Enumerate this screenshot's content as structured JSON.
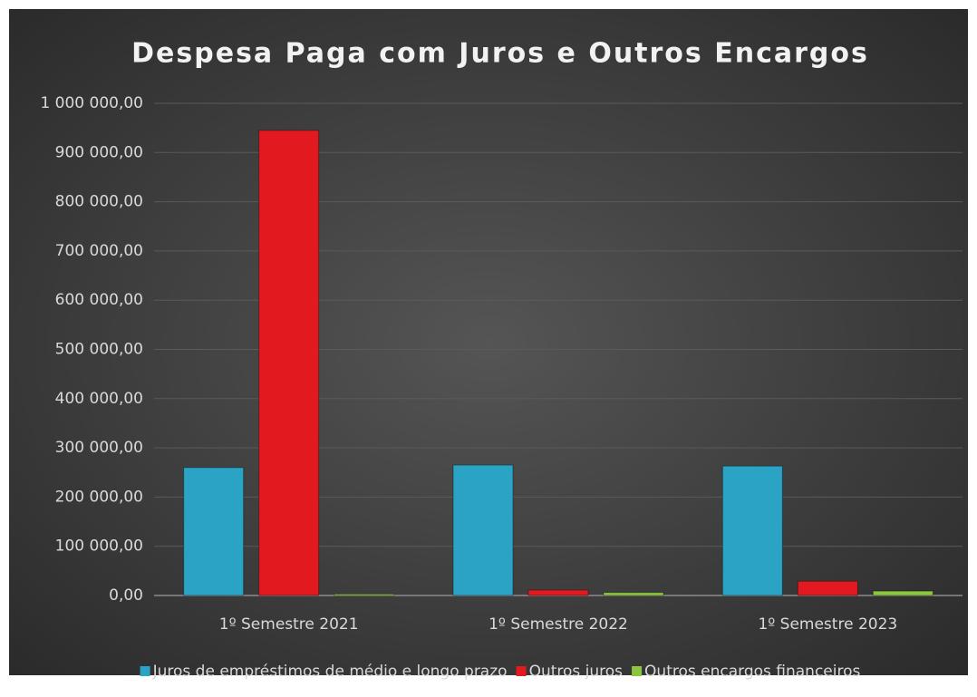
{
  "chart_data": {
    "type": "bar",
    "title": "Despesa Paga com Juros e Outros Encargos",
    "categories": [
      "1º Semestre 2021",
      "1º Semestre 2022",
      "1º Semestre 2023"
    ],
    "series": [
      {
        "name": "Juros de empréstimos de médio e longo prazo",
        "color": "#2aa3c4",
        "values": [
          260000,
          265000,
          263000
        ]
      },
      {
        "name": "Outros juros",
        "color": "#e2191f",
        "values": [
          945000,
          11000,
          29000
        ]
      },
      {
        "name": "Outros encargos financeiros",
        "color": "#8cc63f",
        "values": [
          3000,
          6000,
          9000
        ]
      }
    ],
    "ylim": [
      0,
      1000000
    ],
    "yticks": [
      {
        "value": 0,
        "label": "0,00"
      },
      {
        "value": 100000,
        "label": "100 000,00"
      },
      {
        "value": 200000,
        "label": "200 000,00"
      },
      {
        "value": 300000,
        "label": "300 000,00"
      },
      {
        "value": 400000,
        "label": "400 000,00"
      },
      {
        "value": 500000,
        "label": "500 000,00"
      },
      {
        "value": 600000,
        "label": "600 000,00"
      },
      {
        "value": 700000,
        "label": "700 000,00"
      },
      {
        "value": 800000,
        "label": "800 000,00"
      },
      {
        "value": 900000,
        "label": "900 000,00"
      },
      {
        "value": 1000000,
        "label": "1 000 000,00"
      }
    ],
    "grid": true,
    "legend": "bottom"
  }
}
